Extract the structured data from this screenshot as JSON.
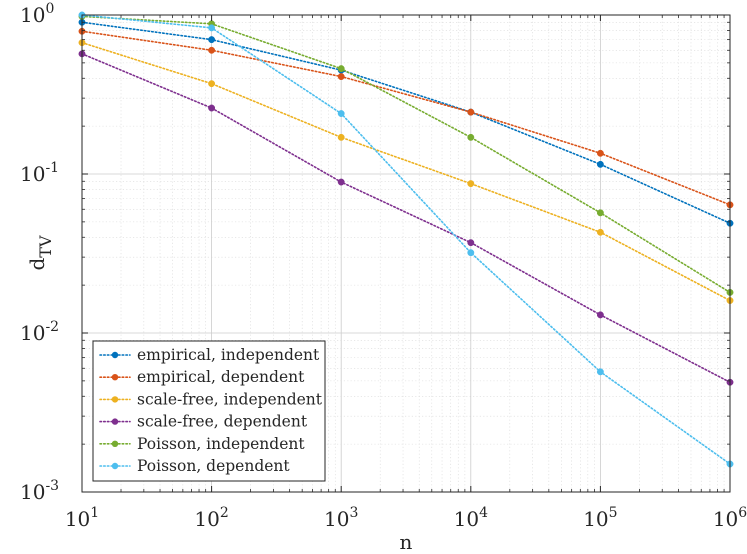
{
  "chart_data": {
    "type": "line",
    "xlabel": "n",
    "ylabel_main": "d",
    "ylabel_sub": "TV",
    "xscale": "log",
    "yscale": "log",
    "xlim": [
      10,
      1000000
    ],
    "ylim": [
      0.001,
      1
    ],
    "grid": true,
    "legend_position": "bottom-left",
    "line_style": "dotted",
    "x_ticks": [
      {
        "value": 10,
        "base": "10",
        "exp": "1"
      },
      {
        "value": 100,
        "base": "10",
        "exp": "2"
      },
      {
        "value": 1000,
        "base": "10",
        "exp": "3"
      },
      {
        "value": 10000,
        "base": "10",
        "exp": "4"
      },
      {
        "value": 100000,
        "base": "10",
        "exp": "5"
      },
      {
        "value": 1000000,
        "base": "10",
        "exp": "6"
      }
    ],
    "y_ticks": [
      {
        "value": 1,
        "base": "10",
        "exp": "0"
      },
      {
        "value": 0.1,
        "base": "10",
        "exp": "-1"
      },
      {
        "value": 0.01,
        "base": "10",
        "exp": "-2"
      },
      {
        "value": 0.001,
        "base": "10",
        "exp": "-3"
      }
    ],
    "x": [
      10,
      100,
      1000,
      10000,
      100000,
      1000000
    ],
    "series": [
      {
        "name": "empirical, independent",
        "color": "#0072BD",
        "values": [
          0.9,
          0.7,
          0.45,
          0.245,
          0.115,
          0.049
        ]
      },
      {
        "name": "empirical, dependent",
        "color": "#D95319",
        "values": [
          0.79,
          0.6,
          0.41,
          0.245,
          0.135,
          0.064
        ]
      },
      {
        "name": "scale-free, independent",
        "color": "#EDB120",
        "values": [
          0.67,
          0.37,
          0.17,
          0.087,
          0.043,
          0.016
        ]
      },
      {
        "name": "scale-free, dependent",
        "color": "#7E2F8E",
        "values": [
          0.57,
          0.26,
          0.089,
          0.037,
          0.013,
          0.0049
        ]
      },
      {
        "name": "Poisson, independent",
        "color": "#77AC30",
        "values": [
          0.98,
          0.88,
          0.46,
          0.17,
          0.057,
          0.018
        ]
      },
      {
        "name": "Poisson, dependent",
        "color": "#4DBEEE",
        "values": [
          1.0,
          0.83,
          0.24,
          0.032,
          0.0057,
          0.0015
        ]
      }
    ]
  }
}
